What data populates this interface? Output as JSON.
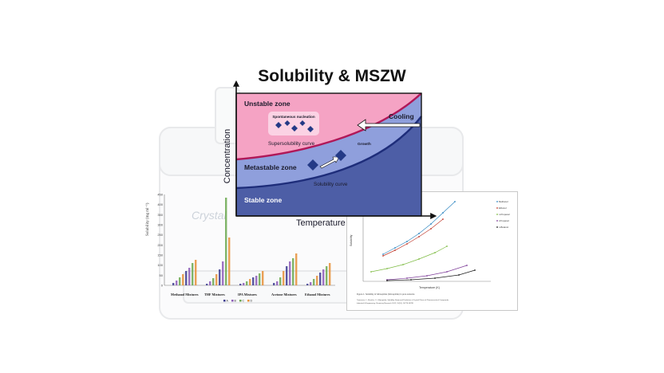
{
  "title": "Solubility & MSZW",
  "diagram": {
    "y_axis_label": "Concentration",
    "x_axis_label": "Temperature",
    "zones": {
      "unstable": "Unstable zone",
      "metastable": "Metastable zone",
      "stable": "Stable zone"
    },
    "curves": {
      "supersolubility": "Supersolubility curve",
      "solubility": "Solubility curve"
    },
    "annotations": {
      "spontaneous": "Spontaneous nucleation",
      "cooling": "Cooling",
      "growth": "Growth"
    },
    "colors": {
      "unstable": "#f5a3c4",
      "metastable": "#8f9fdc",
      "stable": "#4d5ea6",
      "supersolubility_line": "#b01858",
      "solubility_line": "#1e2d7a",
      "crystal": "#243a86"
    }
  },
  "background_instrument": {
    "brand_text": "Crystal"
  },
  "left_chart": {
    "ylabel": "Solubility (mg ml⁻¹)",
    "y_ticks": [
      "450",
      "400",
      "350",
      "300",
      "250",
      "200",
      "150",
      "100",
      "50",
      "0"
    ],
    "groups": [
      "Methanol Mixtures",
      "THF Mixtures",
      "IPA Mixtures",
      "Acetone Mixtures",
      "Ethanol Mixtures"
    ],
    "legend": [
      "A",
      "B",
      "C",
      "D"
    ],
    "colors": [
      "#3b3b8f",
      "#8c5bb8",
      "#6aa84f",
      "#e69138"
    ]
  },
  "right_chart": {
    "x_label": "Temperature (K)",
    "y_label": "Solubility",
    "legend": [
      "Methanol",
      "Ethanol",
      "n-Propanol",
      "i-Propanol",
      "n-Butanol"
    ],
    "colors": [
      "#2e86c1",
      "#c0392b",
      "#7dbb42",
      "#7d3c98",
      "#1b1b1b"
    ],
    "caption_1": "Figure 1. Solubility of Glimepiride (Glimepiride) in pure solvents",
    "caption_2": "Tomasova, J.; Ruzicka, V.; Glimepiride; Solubility Study and Prediction of Crystal Phase of Pharmaceutical Compounds.",
    "caption_3": "Industrial & Engineering Chemistry Research 2012, 51(51), 16778-16789"
  }
}
